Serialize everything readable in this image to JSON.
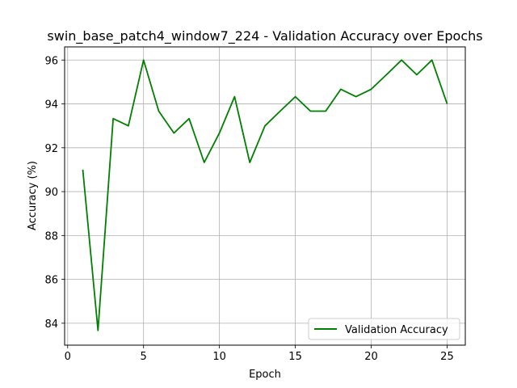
{
  "chart_data": {
    "type": "line",
    "title": "swin_base_patch4_window7_224 - Validation Accuracy over Epochs",
    "xlabel": "Epoch",
    "ylabel": "Accuracy (%)",
    "xlim": [
      -0.2,
      26.2
    ],
    "ylim": [
      83.0,
      96.6
    ],
    "xticks": [
      0,
      5,
      10,
      15,
      20,
      25
    ],
    "yticks": [
      84,
      86,
      88,
      90,
      92,
      94,
      96
    ],
    "grid": true,
    "legend_position": "lower-right",
    "series": [
      {
        "name": "Validation Accuracy",
        "color": "#008000",
        "x": [
          1,
          2,
          3,
          4,
          5,
          6,
          7,
          8,
          9,
          10,
          11,
          12,
          13,
          14,
          15,
          16,
          17,
          18,
          19,
          20,
          21,
          22,
          23,
          24,
          25
        ],
        "values": [
          91.0,
          83.67,
          93.33,
          93.0,
          96.0,
          93.67,
          92.67,
          93.33,
          91.33,
          92.67,
          94.33,
          91.33,
          93.0,
          93.67,
          94.33,
          93.67,
          93.67,
          94.67,
          94.33,
          94.67,
          95.33,
          96.0,
          95.33,
          96.0,
          94.0
        ]
      }
    ]
  }
}
